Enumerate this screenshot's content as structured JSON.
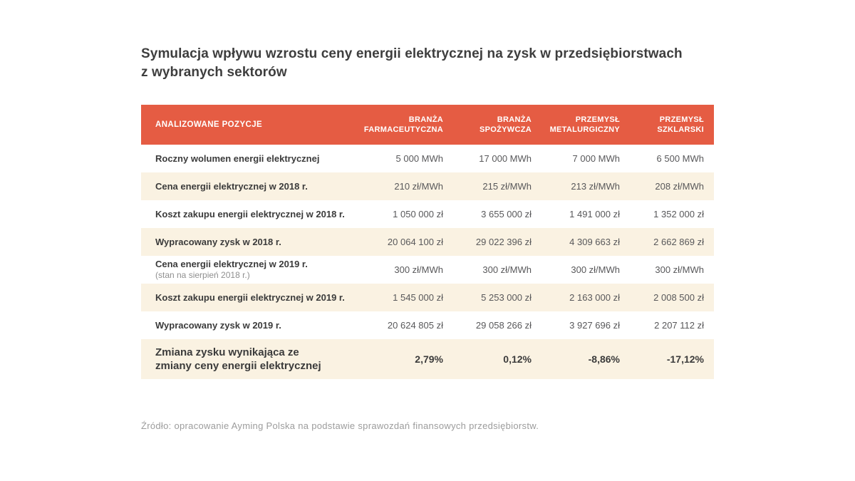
{
  "page": {
    "title_line1": "Symulacja wpływu wzrostu ceny energii elektrycznej na zysk w przedsiębiorstwach",
    "title_line2": "z wybranych sektorów",
    "source": "Źródło: opracowanie Ayming Polska na podstawie sprawozdań finansowych przedsiębiorstw."
  },
  "colors": {
    "header_bg": "#E55C43",
    "stripe_bg": "#FAF2E2",
    "header_text": "#FFFFFF",
    "label_text": "#3B3B3B",
    "value_text": "#58585A",
    "sublabel_text": "#8F8F8F",
    "source_text": "#9C9C9C"
  },
  "table": {
    "header": {
      "label": "ANALIZOWANE POZYCJE",
      "columns": [
        {
          "line1": "BRANŻA",
          "line2": "FARMACEUTYCZNA"
        },
        {
          "line1": "BRANŻA",
          "line2": "SPOŻYWCZA"
        },
        {
          "line1": "PRZEMYSŁ",
          "line2": "METALURGICZNY"
        },
        {
          "line1": "PRZEMYSŁ",
          "line2": "SZKLARSKI"
        }
      ]
    },
    "rows": [
      {
        "label": "Roczny wolumen energii elektrycznej",
        "values": [
          "5 000 MWh",
          "17 000 MWh",
          "7 000 MWh",
          "6 500 MWh"
        ]
      },
      {
        "label": "Cena energii elektrycznej w 2018 r.",
        "values": [
          "210 zł/MWh",
          "215 zł/MWh",
          "213 zł/MWh",
          "208 zł/MWh"
        ]
      },
      {
        "label": "Koszt zakupu energii elektrycznej w 2018 r.",
        "values": [
          "1 050 000 zł",
          "3 655 000 zł",
          "1 491 000 zł",
          "1 352 000 zł"
        ]
      },
      {
        "label": "Wypracowany zysk w 2018 r.",
        "values": [
          "20 064 100 zł",
          "29 022 396 zł",
          "4 309 663 zł",
          "2 662 869 zł"
        ]
      },
      {
        "label": "Cena energii elektrycznej w 2019 r.",
        "sublabel": "(stan na sierpień 2018 r.)",
        "values": [
          "300 zł/MWh",
          "300 zł/MWh",
          "300 zł/MWh",
          "300 zł/MWh"
        ]
      },
      {
        "label": "Koszt zakupu energii elektrycznej w 2019 r.",
        "values": [
          "1 545 000 zł",
          "5 253 000 zł",
          "2 163 000 zł",
          "2 008 500 zł"
        ]
      },
      {
        "label": "Wypracowany zysk w 2019 r.",
        "values": [
          "20 624 805 zł",
          "29 058 266 zł",
          "3 927 696 zł",
          "2 207 112 zł"
        ]
      }
    ],
    "summary_row": {
      "label_line1": "Zmiana zysku wynikająca ze",
      "label_line2": "zmiany ceny energii elektrycznej",
      "values": [
        "2,79%",
        "0,12%",
        "-8,86%",
        "-17,12%"
      ]
    }
  },
  "chart_data": {
    "type": "table",
    "title": "Symulacja wpływu wzrostu ceny energii elektrycznej na zysk w przedsiębiorstwach z wybranych sektorów",
    "columns": [
      "ANALIZOWANE POZYCJE",
      "BRANŻA FARMACEUTYCZNA",
      "BRANŻA SPOŻYWCZA",
      "PRZEMYSŁ METALURGICZNY",
      "PRZEMYSŁ SZKLARSKI"
    ],
    "rows": [
      [
        "Roczny wolumen energii elektrycznej",
        "5 000 MWh",
        "17 000 MWh",
        "7 000 MWh",
        "6 500 MWh"
      ],
      [
        "Cena energii elektrycznej w 2018 r.",
        "210 zł/MWh",
        "215 zł/MWh",
        "213 zł/MWh",
        "208 zł/MWh"
      ],
      [
        "Koszt zakupu energii elektrycznej w 2018 r.",
        "1 050 000 zł",
        "3 655 000 zł",
        "1 491 000 zł",
        "1 352 000 zł"
      ],
      [
        "Wypracowany zysk w 2018 r.",
        "20 064 100 zł",
        "29 022 396 zł",
        "4 309 663 zł",
        "2 662 869 zł"
      ],
      [
        "Cena energii elektrycznej w 2019 r. (stan na sierpień 2018 r.)",
        "300 zł/MWh",
        "300 zł/MWh",
        "300 zł/MWh",
        "300 zł/MWh"
      ],
      [
        "Koszt zakupu energii elektrycznej w 2019 r.",
        "1 545 000 zł",
        "5 253 000 zł",
        "2 163 000 zł",
        "2 008 500 zł"
      ],
      [
        "Wypracowany zysk w 2019 r.",
        "20 624 805 zł",
        "29 058 266 zł",
        "3 927 696 zł",
        "2 207 112 zł"
      ],
      [
        "Zmiana zysku wynikająca ze zmiany ceny energii elektrycznej",
        "2,79%",
        "0,12%",
        "-8,86%",
        "-17,12%"
      ]
    ],
    "source": "Źródło: opracowanie Ayming Polska na podstawie sprawozdań finansowych przedsiębiorstw."
  }
}
